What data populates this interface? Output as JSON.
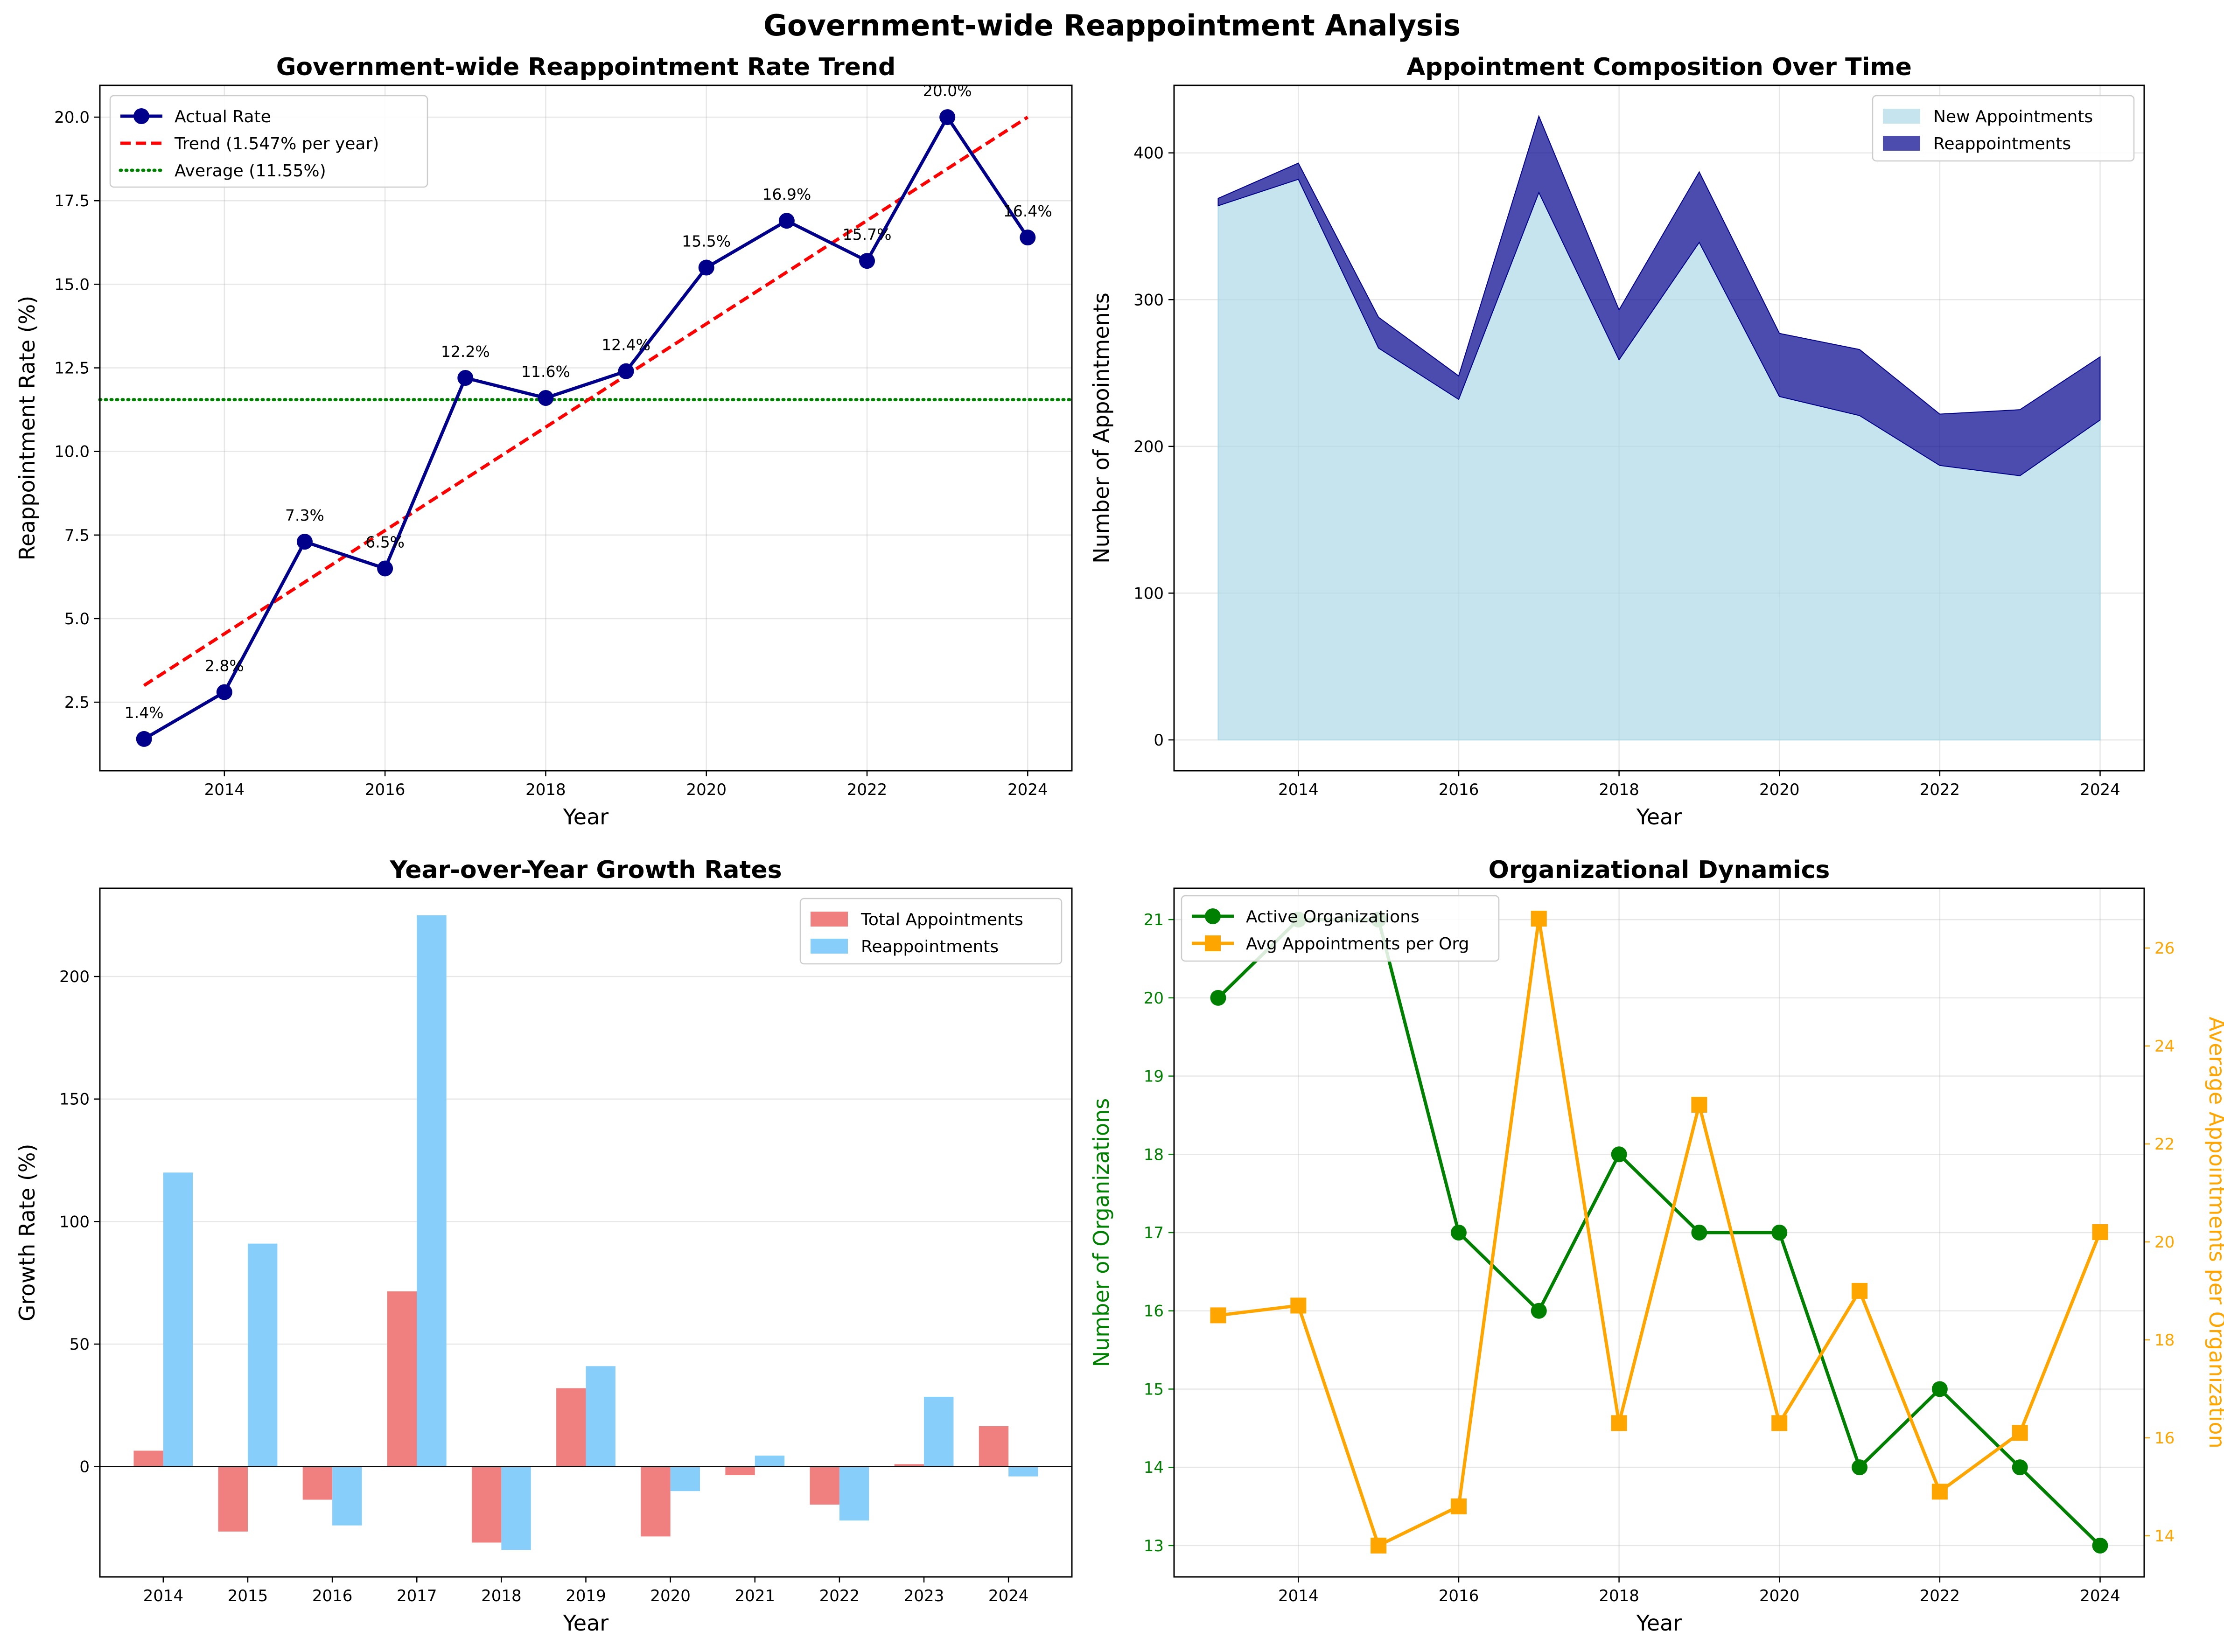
{
  "figure": {
    "suptitle": "Government-wide Reappointment Analysis"
  },
  "chart_data": [
    {
      "id": "rate",
      "type": "line",
      "title": "Government-wide Reappointment Rate Trend",
      "xlabel": "Year",
      "ylabel": "Reappointment Rate (%)",
      "x": [
        2013,
        2014,
        2015,
        2016,
        2017,
        2018,
        2019,
        2020,
        2021,
        2022,
        2023,
        2024
      ],
      "xlim": [
        2012.45,
        2024.55
      ],
      "ylim": [
        0.45,
        20.95
      ],
      "xticks": [
        2014,
        2016,
        2018,
        2020,
        2022,
        2024
      ],
      "yticks": [
        2.5,
        5.0,
        7.5,
        10.0,
        12.5,
        15.0,
        17.5,
        20.0
      ],
      "ytick_labels": [
        "2.5",
        "5.0",
        "7.5",
        "10.0",
        "12.5",
        "15.0",
        "17.5",
        "20.0"
      ],
      "series": [
        {
          "name": "Actual Rate",
          "values": [
            1.4,
            2.8,
            7.3,
            6.5,
            12.2,
            11.6,
            12.4,
            15.5,
            16.9,
            15.7,
            20.0,
            16.4
          ],
          "labels": [
            "1.4%",
            "2.8%",
            "7.3%",
            "6.5%",
            "12.2%",
            "11.6%",
            "12.4%",
            "15.5%",
            "16.9%",
            "15.7%",
            "20.0%",
            "16.4%"
          ],
          "color": "#00008b",
          "marker": "circle"
        }
      ],
      "trend": {
        "name": "Trend (1.547% per year)",
        "start": 3.0,
        "end": 20.0,
        "color": "#ff0000",
        "style": "dashed"
      },
      "average": {
        "name": "Average (11.55%)",
        "value": 11.55,
        "color": "#008000",
        "style": "dotted"
      },
      "legend": "top-left",
      "grid": true
    },
    {
      "id": "composition",
      "type": "area",
      "stacked": true,
      "title": "Appointment Composition Over Time",
      "xlabel": "Year",
      "ylabel": "Number of Appointments",
      "x": [
        2013,
        2014,
        2015,
        2016,
        2017,
        2018,
        2019,
        2020,
        2021,
        2022,
        2023,
        2024
      ],
      "xlim": [
        2012.45,
        2024.55
      ],
      "ylim": [
        -21,
        446
      ],
      "xticks": [
        2014,
        2016,
        2018,
        2020,
        2022,
        2024
      ],
      "yticks": [
        0,
        100,
        200,
        300,
        400
      ],
      "series": [
        {
          "name": "New Appointments",
          "values": [
            364,
            382,
            267,
            232,
            373,
            259,
            339,
            234,
            221,
            187,
            180,
            218
          ],
          "color": "#add8e6"
        },
        {
          "name": "Reappointments",
          "values": [
            5,
            11,
            21,
            16,
            52,
            34,
            48,
            43,
            45,
            35,
            45,
            43
          ],
          "color": "#00008b"
        }
      ],
      "legend": "top-right",
      "grid": true
    },
    {
      "id": "growth",
      "type": "bar",
      "title": "Year-over-Year Growth Rates",
      "xlabel": "Year",
      "ylabel": "Growth Rate (%)",
      "categories": [
        "2014",
        "2015",
        "2016",
        "2017",
        "2018",
        "2019",
        "2020",
        "2021",
        "2022",
        "2023",
        "2024"
      ],
      "ylim": [
        -45,
        236
      ],
      "yticks": [
        0,
        50,
        100,
        150,
        200
      ],
      "series": [
        {
          "name": "Total Appointments",
          "values": [
            6.5,
            -26.5,
            -13.5,
            71.5,
            -31.0,
            32.0,
            -28.5,
            -3.5,
            -15.5,
            1.0,
            16.5
          ],
          "color": "#f08080"
        },
        {
          "name": "Reappointments",
          "values": [
            120,
            91,
            -24,
            225,
            -34,
            41,
            -10,
            4.5,
            -22,
            28.5,
            -4
          ],
          "color": "#87cefa"
        }
      ],
      "legend": "top-right",
      "grid": true
    },
    {
      "id": "orgs",
      "type": "line",
      "title": "Organizational Dynamics",
      "xlabel": "Year",
      "ylabel": "Number of Organizations",
      "ylabel_right": "Average Appointments per Organization",
      "x": [
        2013,
        2014,
        2015,
        2016,
        2017,
        2018,
        2019,
        2020,
        2021,
        2022,
        2023,
        2024
      ],
      "xlim": [
        2012.45,
        2024.55
      ],
      "xticks": [
        2014,
        2016,
        2018,
        2020,
        2022,
        2024
      ],
      "ylim": [
        12.6,
        21.4
      ],
      "yticks": [
        13,
        14,
        15,
        16,
        17,
        18,
        19,
        20,
        21
      ],
      "ylim_right": [
        13.16,
        27.22
      ],
      "yticks_right": [
        14,
        16,
        18,
        20,
        22,
        24,
        26
      ],
      "series": [
        {
          "name": "Active Organizations",
          "values": [
            20,
            21,
            21,
            17,
            16,
            18,
            17,
            17,
            14,
            15,
            14,
            13
          ],
          "color": "#008000",
          "marker": "circle",
          "axis": "left"
        },
        {
          "name": "Avg Appointments per Org",
          "values": [
            18.5,
            18.7,
            13.8,
            14.6,
            26.6,
            16.3,
            22.8,
            16.3,
            19.0,
            14.9,
            16.1,
            20.2
          ],
          "color": "#ffa500",
          "marker": "square",
          "axis": "right"
        }
      ],
      "legend": "top-left",
      "grid": true
    }
  ]
}
